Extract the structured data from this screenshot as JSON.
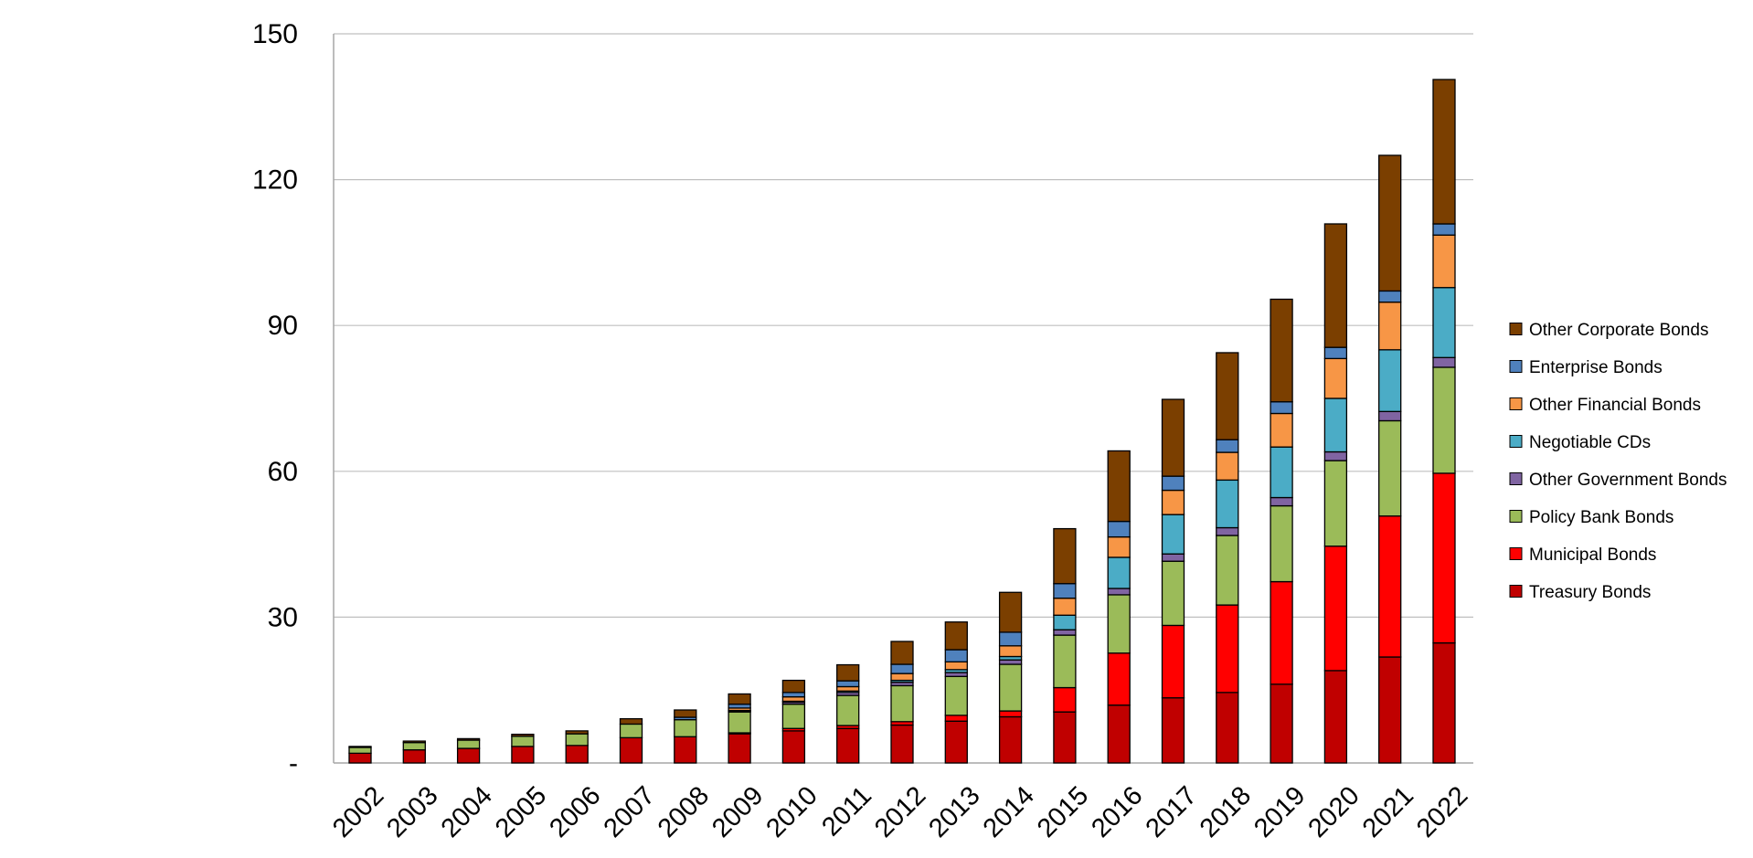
{
  "chart_data": {
    "type": "bar",
    "stacked": true,
    "title": "",
    "xlabel": "",
    "ylabel": "",
    "ylim": [
      0,
      150
    ],
    "yticks": [
      {
        "value": 0,
        "label": "-"
      },
      {
        "value": 30,
        "label": "30"
      },
      {
        "value": 60,
        "label": "60"
      },
      {
        "value": 90,
        "label": "90"
      },
      {
        "value": 120,
        "label": "120"
      },
      {
        "value": 150,
        "label": "150"
      }
    ],
    "grid": true,
    "legend_position": "right",
    "categories": [
      "2002",
      "2003",
      "2004",
      "2005",
      "2006",
      "2007",
      "2008",
      "2009",
      "2010",
      "2011",
      "2012",
      "2013",
      "2014",
      "2015",
      "2016",
      "2017",
      "2018",
      "2019",
      "2020",
      "2021",
      "2022"
    ],
    "series": [
      {
        "name": "Treasury Bonds",
        "color": "#C00000",
        "values": [
          2.0,
          2.7,
          3.0,
          3.4,
          3.6,
          5.2,
          5.4,
          6.0,
          6.6,
          7.1,
          7.8,
          8.6,
          9.5,
          10.5,
          11.9,
          13.4,
          14.5,
          16.2,
          19.0,
          21.8,
          24.7
        ]
      },
      {
        "name": "Municipal Bonds",
        "color": "#FF0000",
        "values": [
          0.0,
          0.0,
          0.0,
          0.0,
          0.0,
          0.0,
          0.0,
          0.2,
          0.5,
          0.6,
          0.7,
          1.2,
          1.2,
          5.0,
          10.7,
          14.9,
          18.0,
          21.1,
          25.6,
          29.0,
          34.9
        ]
      },
      {
        "name": "Policy Bank Bonds",
        "color": "#9BBB59",
        "values": [
          1.2,
          1.5,
          1.7,
          2.1,
          2.4,
          2.8,
          3.5,
          4.3,
          5.0,
          6.2,
          7.4,
          8.0,
          9.6,
          10.8,
          12.0,
          13.2,
          14.3,
          15.6,
          17.6,
          19.6,
          21.8
        ]
      },
      {
        "name": "Other Government Bonds",
        "color": "#8064A2",
        "values": [
          0.0,
          0.0,
          0.0,
          0.0,
          0.0,
          0.0,
          0.0,
          0.2,
          0.4,
          0.6,
          0.7,
          0.8,
          0.9,
          1.1,
          1.3,
          1.5,
          1.6,
          1.7,
          1.8,
          1.9,
          2.0
        ]
      },
      {
        "name": "Negotiable CDs",
        "color": "#4BACC6",
        "values": [
          0.0,
          0.0,
          0.0,
          0.0,
          0.0,
          0.0,
          0.0,
          0.1,
          0.2,
          0.3,
          0.4,
          0.6,
          0.7,
          3.0,
          6.4,
          8.1,
          9.8,
          10.4,
          11.0,
          12.7,
          14.4
        ]
      },
      {
        "name": "Other Financial Bonds",
        "color": "#F79646",
        "values": [
          0.0,
          0.0,
          0.0,
          0.0,
          0.0,
          0.0,
          0.0,
          0.5,
          0.9,
          0.9,
          1.4,
          1.6,
          2.2,
          3.5,
          4.2,
          5.0,
          5.7,
          6.9,
          8.2,
          9.8,
          10.8
        ]
      },
      {
        "name": "Enterprise Bonds",
        "color": "#4F81BD",
        "values": [
          0.0,
          0.0,
          0.0,
          0.0,
          0.0,
          0.0,
          0.5,
          0.8,
          0.9,
          1.2,
          1.9,
          2.5,
          2.8,
          3.0,
          3.2,
          2.9,
          2.6,
          2.4,
          2.3,
          2.3,
          2.3
        ]
      },
      {
        "name": "Other Corporate Bonds",
        "color": "#7B3F00",
        "values": [
          0.2,
          0.3,
          0.3,
          0.4,
          0.6,
          1.1,
          1.5,
          2.1,
          2.5,
          3.3,
          4.7,
          5.7,
          8.2,
          11.3,
          14.5,
          15.8,
          17.9,
          21.1,
          25.4,
          27.9,
          29.7
        ]
      }
    ]
  }
}
